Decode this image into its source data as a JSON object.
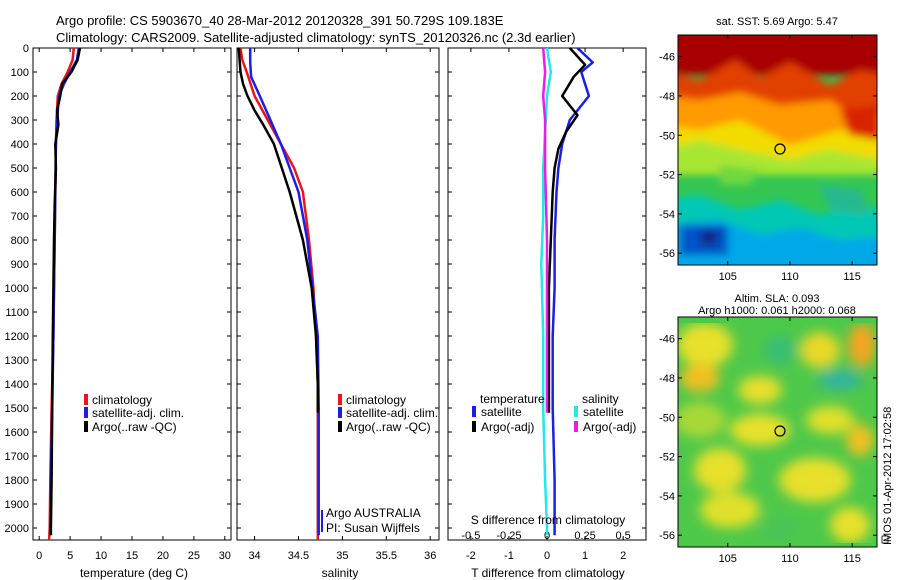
{
  "title": {
    "line1": "Argo profile: CS 5903670_40 28-Mar-2012 20120328_391 50.729S 109.183E",
    "line2": "Climatology: CARS2009. Satellite-adjusted climatology: synTS_20120326.nc (2.3d earlier)"
  },
  "footer": "IMOS 01-Apr-2012 17:02:58",
  "colors": {
    "red": "#e8141e",
    "blue": "#1e1ee0",
    "black": "#000000",
    "cyan": "#22e8e8",
    "magenta": "#e81ee8"
  },
  "chart_data": [
    {
      "type": "line",
      "name": "temperature-panel",
      "xlabel": "temperature (deg C)",
      "ylabel": "",
      "xlim": [
        -1,
        31
      ],
      "ylim": [
        2050,
        0
      ],
      "xticks": [
        "0",
        "5",
        "10",
        "15",
        "20",
        "25",
        "30"
      ],
      "yticks": [
        "0",
        "100",
        "200",
        "300",
        "400",
        "500",
        "600",
        "700",
        "800",
        "900",
        "1000",
        "1100",
        "1200",
        "1300",
        "1400",
        "1500",
        "1600",
        "1700",
        "1800",
        "1900",
        "2000"
      ],
      "legend": [
        "climatology",
        "satellite-adj. clim.",
        "Argo(..raw -QC)"
      ],
      "series": [
        {
          "color": "red",
          "x": [
            5.6,
            5.4,
            4.6,
            3.6,
            3.0,
            2.8,
            2.7,
            2.6,
            2.5,
            2.4,
            2.3,
            2.0,
            1.8,
            1.7,
            1.6
          ],
          "y": [
            0,
            50,
            100,
            150,
            200,
            300,
            400,
            600,
            800,
            1000,
            1200,
            1500,
            1800,
            2000,
            2050
          ]
        },
        {
          "color": "blue",
          "x": [
            6.4,
            6.1,
            5.0,
            4.0,
            3.2,
            2.9,
            2.7,
            2.6,
            2.5,
            2.4,
            2.3,
            2.1,
            1.9,
            1.8
          ],
          "y": [
            0,
            50,
            100,
            150,
            200,
            300,
            400,
            600,
            800,
            1000,
            1200,
            1500,
            1800,
            2030
          ]
        },
        {
          "color": "black",
          "x": [
            6.6,
            6.2,
            5.2,
            3.7,
            3.4,
            2.9,
            3.1,
            2.6,
            2.7,
            2.5,
            2.4,
            2.3,
            2.2,
            2.1,
            2.0,
            1.9,
            1.9
          ],
          "y": [
            0,
            50,
            100,
            150,
            200,
            260,
            320,
            400,
            500,
            650,
            800,
            1000,
            1200,
            1500,
            1800,
            2000,
            2030
          ]
        }
      ]
    },
    {
      "type": "line",
      "name": "salinity-panel",
      "xlabel": "salinity",
      "xlim": [
        33.8,
        36.1
      ],
      "ylim": [
        2050,
        0
      ],
      "xticks": [
        "34",
        "34.5",
        "35",
        "35.5",
        "36"
      ],
      "legend": [
        "climatology",
        "satellite-adj. clim.",
        "Argo(..raw -QC)"
      ],
      "annotations": [
        "Argo AUSTRALIA",
        "PI: Susan Wijffels"
      ],
      "series": [
        {
          "color": "red",
          "x": [
            33.84,
            33.86,
            33.91,
            34.0,
            34.15,
            34.3,
            34.45,
            34.55,
            34.62,
            34.67,
            34.7,
            34.72,
            34.72,
            34.72
          ],
          "y": [
            0,
            50,
            100,
            200,
            300,
            400,
            500,
            600,
            800,
            1000,
            1200,
            1400,
            1600,
            2050
          ]
        },
        {
          "color": "blue",
          "x": [
            33.95,
            33.95,
            33.96,
            34.06,
            34.18,
            34.3,
            34.4,
            34.5,
            34.6,
            34.66,
            34.72,
            34.73,
            34.73
          ],
          "y": [
            0,
            60,
            120,
            200,
            300,
            400,
            500,
            600,
            800,
            1000,
            1200,
            1500,
            2030
          ]
        },
        {
          "color": "black",
          "x": [
            33.82,
            33.83,
            33.84,
            33.87,
            33.92,
            34.0,
            34.1,
            34.22,
            34.4,
            34.55,
            34.65,
            34.7,
            34.72,
            34.72
          ],
          "y": [
            0,
            50,
            100,
            150,
            200,
            260,
            320,
            400,
            600,
            800,
            1000,
            1200,
            1400,
            1520
          ]
        }
      ]
    },
    {
      "type": "line",
      "name": "difference-panel",
      "xlabel": "T difference from climatology",
      "top_label": "S difference from climatology",
      "xlim": [
        -2.6,
        2.6
      ],
      "ylim": [
        2050,
        0
      ],
      "xticks": [
        "-2",
        "-1",
        "0",
        "1",
        "2"
      ],
      "s_ticks": [
        "-0.5",
        "-0.25",
        "0",
        "0.25",
        "0.5"
      ],
      "s_tick_values": [
        -0.5,
        -0.25,
        0,
        0.25,
        0.5
      ],
      "legend_headers": [
        "temperature",
        "salinity"
      ],
      "legend": [
        "satellite",
        "Argo(-adj)",
        "satellite",
        "Argo(-adj)"
      ],
      "series": [
        {
          "color": "blue",
          "x": [
            0.8,
            1.2,
            0.9,
            1.1,
            0.6,
            0.4,
            0.3,
            0.25,
            0.2,
            0.2,
            0.15,
            0.15,
            0.2,
            0.2
          ],
          "y": [
            0,
            60,
            100,
            200,
            300,
            400,
            500,
            600,
            800,
            1000,
            1200,
            1500,
            1800,
            2030
          ]
        },
        {
          "color": "black",
          "x": [
            0.6,
            1.0,
            0.7,
            0.4,
            0.8,
            0.5,
            0.3,
            0.2,
            0.15,
            0.1,
            0.05,
            0.05,
            0.05,
            0.05
          ],
          "y": [
            0,
            70,
            120,
            200,
            280,
            350,
            420,
            500,
            600,
            800,
            1000,
            1200,
            1400,
            1520
          ]
        },
        {
          "color": "cyan",
          "x": [
            0.0,
            0.1,
            0.0,
            -0.05,
            -0.1,
            -0.1,
            -0.15,
            -0.1,
            -0.1,
            -0.05,
            0.0,
            0.0
          ],
          "y": [
            0,
            100,
            200,
            350,
            500,
            700,
            900,
            1200,
            1500,
            1800,
            2000,
            2030
          ]
        },
        {
          "color": "magenta",
          "x": [
            -0.1,
            -0.05,
            -0.1,
            -0.05,
            -0.05,
            0.0,
            0.0,
            0.0
          ],
          "y": [
            0,
            100,
            200,
            300,
            500,
            800,
            1200,
            1520
          ]
        }
      ]
    },
    {
      "type": "heatmap",
      "name": "sst-map",
      "title": "sat. SST: 5.69 Argo: 5.47",
      "xlim": [
        101,
        117
      ],
      "ylim": [
        -56.6,
        -44.9
      ],
      "xticks": [
        "105",
        "110",
        "115"
      ],
      "yticks": [
        "-46",
        "-48",
        "-50",
        "-52",
        "-54",
        "-56"
      ],
      "marker": {
        "x": 109.2,
        "y": -50.7
      }
    },
    {
      "type": "heatmap",
      "name": "sla-map",
      "title": "Altim. SLA: 0.093",
      "subtitle": "Argo h1000: 0.061 h2000: 0.068",
      "xlim": [
        101,
        117
      ],
      "ylim": [
        -56.6,
        -44.9
      ],
      "xticks": [
        "105",
        "110",
        "115"
      ],
      "yticks": [
        "-46",
        "-48",
        "-50",
        "-52",
        "-54",
        "-56"
      ],
      "marker": {
        "x": 109.2,
        "y": -50.7
      }
    }
  ]
}
